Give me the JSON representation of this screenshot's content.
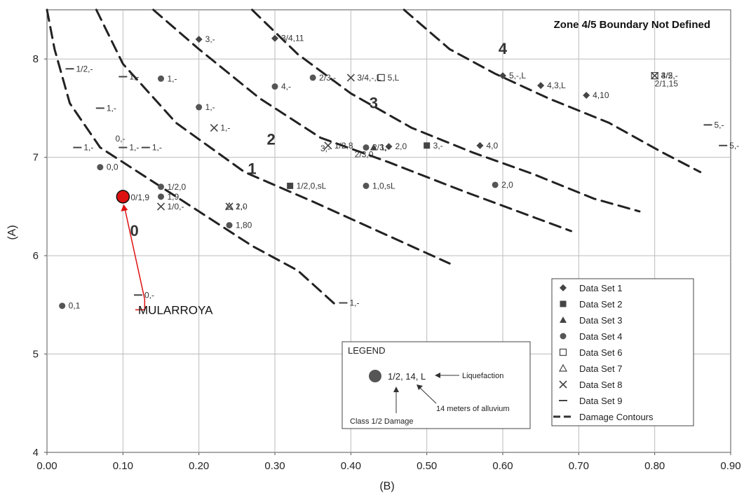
{
  "chart_data": {
    "type": "scatter",
    "xlabel": "(B)",
    "ylabel": "(A)",
    "xlim": [
      0.0,
      0.9
    ],
    "ylim": [
      4,
      8.5
    ],
    "x_ticks": [
      "0.00",
      "0.10",
      "0.20",
      "0.30",
      "0.40",
      "0.50",
      "0.60",
      "0.70",
      "0.80",
      "0.90"
    ],
    "y_ticks": [
      "4",
      "5",
      "6",
      "7",
      "8"
    ],
    "grid": true,
    "note": "Zone 4/5 Boundary Not Defined",
    "zones": [
      {
        "label": "0",
        "x": 0.115,
        "y": 6.2
      },
      {
        "label": "1",
        "x": 0.27,
        "y": 6.83
      },
      {
        "label": "2",
        "x": 0.295,
        "y": 7.13
      },
      {
        "label": "3",
        "x": 0.43,
        "y": 7.5
      },
      {
        "label": "4",
        "x": 0.6,
        "y": 8.05
      }
    ],
    "contours": [
      [
        [
          0.0,
          8.5
        ],
        [
          0.01,
          8.1
        ],
        [
          0.03,
          7.55
        ],
        [
          0.07,
          7.1
        ],
        [
          0.12,
          6.85
        ],
        [
          0.2,
          6.45
        ],
        [
          0.27,
          6.1
        ],
        [
          0.33,
          5.85
        ],
        [
          0.38,
          5.5
        ]
      ],
      [
        [
          0.065,
          8.5
        ],
        [
          0.1,
          7.95
        ],
        [
          0.17,
          7.35
        ],
        [
          0.26,
          6.85
        ],
        [
          0.35,
          6.55
        ],
        [
          0.45,
          6.2
        ],
        [
          0.53,
          5.92
        ]
      ],
      [
        [
          0.14,
          8.5
        ],
        [
          0.2,
          8.1
        ],
        [
          0.28,
          7.6
        ],
        [
          0.36,
          7.2
        ],
        [
          0.45,
          6.95
        ],
        [
          0.55,
          6.65
        ],
        [
          0.62,
          6.45
        ],
        [
          0.69,
          6.25
        ]
      ],
      [
        [
          0.27,
          8.5
        ],
        [
          0.33,
          8.05
        ],
        [
          0.4,
          7.65
        ],
        [
          0.48,
          7.3
        ],
        [
          0.56,
          7.05
        ],
        [
          0.64,
          6.83
        ],
        [
          0.72,
          6.58
        ],
        [
          0.78,
          6.45
        ]
      ],
      [
        [
          0.47,
          8.5
        ],
        [
          0.53,
          8.1
        ],
        [
          0.59,
          7.85
        ],
        [
          0.66,
          7.6
        ],
        [
          0.74,
          7.35
        ],
        [
          0.81,
          7.05
        ],
        [
          0.86,
          6.85
        ]
      ]
    ],
    "series": [
      {
        "name": "Data Set 1",
        "marker": "diamond",
        "points": [
          {
            "x": 0.2,
            "y": 8.2,
            "label": "3,-"
          },
          {
            "x": 0.3,
            "y": 8.21,
            "label": "3/4,11"
          },
          {
            "x": 0.45,
            "y": 7.11,
            "label": "2,0"
          },
          {
            "x": 0.57,
            "y": 7.12,
            "label": "4,0"
          },
          {
            "x": 0.6,
            "y": 7.83,
            "label": "5,-,L"
          },
          {
            "x": 0.65,
            "y": 7.73,
            "label": "4,3,L"
          },
          {
            "x": 0.71,
            "y": 7.63,
            "label": "4,10"
          }
        ]
      },
      {
        "name": "Data Set 2",
        "marker": "square",
        "points": [
          {
            "x": 0.32,
            "y": 6.71,
            "label": "1/2,0,sL"
          },
          {
            "x": 0.5,
            "y": 7.12,
            "label": "3,-"
          }
        ]
      },
      {
        "name": "Data Set 3",
        "marker": "triangle",
        "points": [
          {
            "x": 0.43,
            "y": 7.1,
            "label": "1,-"
          }
        ]
      },
      {
        "name": "Data Set 4",
        "marker": "circle",
        "points": [
          {
            "x": 0.02,
            "y": 5.49,
            "label": "0,1"
          },
          {
            "x": 0.07,
            "y": 6.9,
            "label": "0,0"
          },
          {
            "x": 0.15,
            "y": 7.8,
            "label": "1,-"
          },
          {
            "x": 0.2,
            "y": 7.51,
            "label": "1,-"
          },
          {
            "x": 0.3,
            "y": 7.72,
            "label": "4,-"
          },
          {
            "x": 0.35,
            "y": 7.81,
            "label": "2/3,-"
          },
          {
            "x": 0.15,
            "y": 6.7,
            "label": "1/2,0"
          },
          {
            "x": 0.15,
            "y": 6.6,
            "label": "1,9"
          },
          {
            "x": 0.24,
            "y": 6.31,
            "label": "1,80"
          },
          {
            "x": 0.42,
            "y": 6.71,
            "label": "1,0,sL"
          },
          {
            "x": 0.59,
            "y": 6.72,
            "label": "2,0"
          },
          {
            "x": 0.42,
            "y": 7.1,
            "label": "2/3,-"
          }
        ]
      },
      {
        "name": "Data Set 6",
        "marker": "open-square",
        "points": [
          {
            "x": 0.44,
            "y": 7.81,
            "label": "5,L"
          },
          {
            "x": 0.8,
            "y": 7.83,
            "label": "4/5,-"
          }
        ]
      },
      {
        "name": "Data Set 7",
        "marker": "open-triangle",
        "points": [
          {
            "x": 0.24,
            "y": 6.5,
            "label": "2,-"
          }
        ]
      },
      {
        "name": "Data Set 8",
        "marker": "x",
        "points": [
          {
            "x": 0.22,
            "y": 7.3,
            "label": "1,-"
          },
          {
            "x": 0.4,
            "y": 7.81,
            "label": "3/4,-,L"
          },
          {
            "x": 0.15,
            "y": 6.5,
            "label": "1/0,-"
          },
          {
            "x": 0.24,
            "y": 6.5,
            "label": "1,0"
          },
          {
            "x": 0.37,
            "y": 7.12,
            "label": "1/2,8"
          },
          {
            "x": 0.8,
            "y": 7.83,
            "label": "3/2,-"
          }
        ]
      },
      {
        "name": "Data Set 9",
        "marker": "dash",
        "points": [
          {
            "x": 0.03,
            "y": 7.9,
            "label": "1/2,-"
          },
          {
            "x": 0.1,
            "y": 7.82,
            "label": "1,-"
          },
          {
            "x": 0.07,
            "y": 7.5,
            "label": "1,-"
          },
          {
            "x": 0.04,
            "y": 7.1,
            "label": "1,-"
          },
          {
            "x": 0.1,
            "y": 7.1,
            "label": "1,-"
          },
          {
            "x": 0.13,
            "y": 7.1,
            "label": "1,-"
          },
          {
            "x": 0.12,
            "y": 5.6,
            "label": "0,-"
          },
          {
            "x": 0.39,
            "y": 5.52,
            "label": "1,-"
          },
          {
            "x": 0.87,
            "y": 7.33,
            "label": "5,-"
          },
          {
            "x": 0.89,
            "y": 7.12,
            "label": "5,-"
          }
        ]
      }
    ],
    "extra_labels": [
      {
        "x": 0.09,
        "y": 7.16,
        "text": "0,-"
      },
      {
        "x": 0.8,
        "y": 7.72,
        "text": "2/1,15"
      },
      {
        "x": 0.405,
        "y": 7.0,
        "text": "2/3,0"
      },
      {
        "x": 0.36,
        "y": 7.06,
        "text": "3,-"
      }
    ],
    "highlight": {
      "x": 0.1,
      "y": 6.6,
      "label": "MULARROYA",
      "label_x": 0.12,
      "label_y": 5.45,
      "point_label": "0/1,9",
      "color": "#dd1111"
    },
    "legend": {
      "position": "bottom-right",
      "items": [
        {
          "name": "Data Set 1",
          "marker": "diamond"
        },
        {
          "name": "Data Set 2",
          "marker": "square"
        },
        {
          "name": "Data Set 3",
          "marker": "triangle"
        },
        {
          "name": "Data Set 4",
          "marker": "circle"
        },
        {
          "name": "Data Set 6",
          "marker": "open-square"
        },
        {
          "name": "Data Set 7",
          "marker": "open-triangle"
        },
        {
          "name": "Data Set 8",
          "marker": "x"
        },
        {
          "name": "Data Set 9",
          "marker": "dash"
        },
        {
          "name": "Damage Contours",
          "marker": "contour"
        }
      ]
    },
    "explanation_legend": {
      "title": "LEGEND",
      "example": "1/2, 14, L",
      "liquefaction": "Liquefaction",
      "alluvium": "14 meters of alluvium",
      "class": "Class 1/2 Damage"
    }
  }
}
